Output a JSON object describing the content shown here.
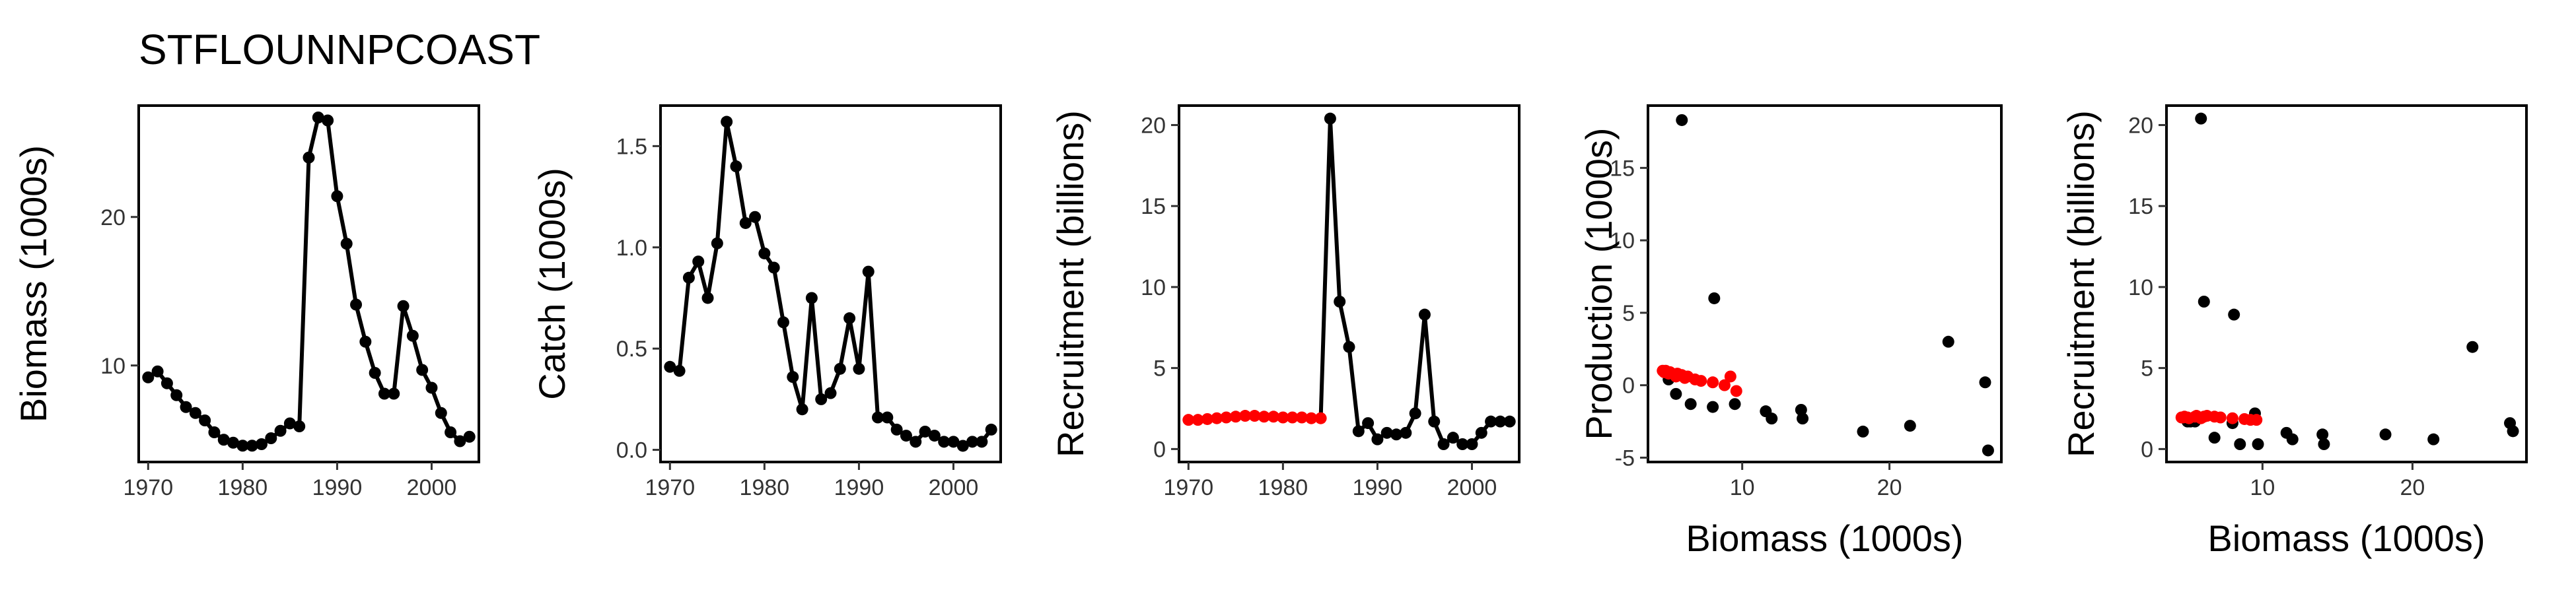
{
  "title": "STFLOUNNPCOAST",
  "chart_data": [
    {
      "id": "biomass_ts",
      "type": "line",
      "xlabel": "",
      "ylabel": "Biomass (1000s)",
      "xlim": [
        1969,
        2005
      ],
      "ylim": [
        3.5,
        27.5
      ],
      "xticks": [
        1970,
        1980,
        1990,
        2000
      ],
      "yticks": [
        10,
        20
      ],
      "series": [
        {
          "color": "#000000",
          "x": [
            1970,
            1971,
            1972,
            1973,
            1974,
            1975,
            1976,
            1977,
            1978,
            1979,
            1980,
            1981,
            1982,
            1983,
            1984,
            1985,
            1986,
            1987,
            1988,
            1989,
            1990,
            1991,
            1992,
            1993,
            1994,
            1995,
            1996,
            1997,
            1998,
            1999,
            2000,
            2001,
            2002,
            2003,
            2004
          ],
          "y": [
            9.2,
            9.6,
            8.8,
            8.0,
            7.2,
            6.8,
            6.3,
            5.5,
            5.0,
            4.8,
            4.6,
            4.6,
            4.7,
            5.1,
            5.6,
            6.1,
            5.9,
            24.0,
            26.7,
            26.5,
            21.4,
            18.2,
            14.1,
            11.6,
            9.5,
            8.1,
            8.1,
            14.0,
            12.0,
            9.7,
            8.5,
            6.8,
            5.5,
            4.9,
            5.2
          ],
          "markers": true
        }
      ]
    },
    {
      "id": "catch_ts",
      "type": "line",
      "xlabel": "",
      "ylabel": "Catch (1000s)",
      "xlim": [
        1969,
        2005
      ],
      "ylim": [
        -0.06,
        1.7
      ],
      "xticks": [
        1970,
        1980,
        1990,
        2000
      ],
      "yticks": [
        0.0,
        0.5,
        1.0,
        1.5
      ],
      "ytick_labels": [
        "0.0",
        "0.5",
        "1.0",
        "1.5"
      ],
      "series": [
        {
          "color": "#000000",
          "x": [
            1970,
            1971,
            1972,
            1973,
            1974,
            1975,
            1976,
            1977,
            1978,
            1979,
            1980,
            1981,
            1982,
            1983,
            1984,
            1985,
            1986,
            1987,
            1988,
            1989,
            1990,
            1991,
            1992,
            1993,
            1994,
            1995,
            1996,
            1997,
            1998,
            1999,
            2000,
            2001,
            2002,
            2003,
            2004
          ],
          "y": [
            0.41,
            0.39,
            0.85,
            0.93,
            0.75,
            1.02,
            1.62,
            1.4,
            1.12,
            1.15,
            0.97,
            0.9,
            0.63,
            0.36,
            0.2,
            0.75,
            0.25,
            0.28,
            0.4,
            0.65,
            0.4,
            0.88,
            0.16,
            0.16,
            0.1,
            0.07,
            0.04,
            0.09,
            0.07,
            0.04,
            0.04,
            0.02,
            0.04,
            0.04,
            0.1
          ],
          "markers": true
        }
      ]
    },
    {
      "id": "recruitment_ts",
      "type": "line",
      "xlabel": "",
      "ylabel": "Recruitment (billions)",
      "xlim": [
        1969,
        2005
      ],
      "ylim": [
        -0.8,
        21.2
      ],
      "xticks": [
        1970,
        1980,
        1990,
        2000
      ],
      "yticks": [
        0,
        5,
        10,
        15,
        20
      ],
      "series": [
        {
          "color": "#000000",
          "x": [
            1970,
            1971,
            1972,
            1973,
            1974,
            1975,
            1976,
            1977,
            1978,
            1979,
            1980,
            1981,
            1982,
            1983,
            1984,
            1985,
            1986,
            1987,
            1988,
            1989,
            1990,
            1991,
            1992,
            1993,
            1994,
            1995,
            1996,
            1997,
            1998,
            1999,
            2000,
            2001,
            2002,
            2003,
            2004
          ],
          "y": [
            1.8,
            1.8,
            1.85,
            1.9,
            1.95,
            2.0,
            2.05,
            2.05,
            2.0,
            2.0,
            1.95,
            1.95,
            1.95,
            1.9,
            1.9,
            20.4,
            9.1,
            6.3,
            1.1,
            1.6,
            0.6,
            1.0,
            0.9,
            1.0,
            2.2,
            8.3,
            1.7,
            0.3,
            0.7,
            0.3,
            0.3,
            1.0,
            1.7,
            1.7,
            1.7
          ],
          "markers": true,
          "highlight_first": 15,
          "highlight_color": "#ff0000"
        }
      ]
    },
    {
      "id": "production_vs_biomass",
      "type": "scatter",
      "xlabel": "Biomass (1000s)",
      "ylabel": "Production (1000s)",
      "xlim": [
        3.6,
        27.6
      ],
      "ylim": [
        -5.3,
        19.3
      ],
      "xticks": [
        10,
        20
      ],
      "yticks": [
        -5,
        0,
        5,
        10,
        15
      ],
      "series": [
        {
          "color": "#000000",
          "x": [
            5.0,
            5.5,
            5.9,
            6.5,
            8.0,
            8.1,
            9.5,
            11.6,
            12.0,
            14.0,
            14.1,
            18.2,
            21.4,
            24.0,
            26.5,
            26.7
          ],
          "y": [
            0.4,
            -0.6,
            18.3,
            -1.3,
            -1.5,
            6.0,
            -1.3,
            -1.8,
            -2.3,
            -1.7,
            -2.3,
            -3.2,
            -2.8,
            3.0,
            0.2,
            -4.5
          ]
        },
        {
          "color": "#ff0000",
          "x": [
            4.6,
            4.7,
            4.8,
            5.0,
            5.1,
            5.5,
            5.6,
            5.9,
            6.1,
            6.3,
            6.8,
            7.2,
            8.0,
            8.8,
            9.2,
            9.6
          ],
          "y": [
            1.0,
            0.9,
            1.0,
            0.8,
            0.9,
            0.6,
            0.8,
            0.7,
            0.5,
            0.6,
            0.4,
            0.3,
            0.2,
            0.0,
            0.6,
            -0.4
          ]
        }
      ]
    },
    {
      "id": "recruitment_vs_biomass",
      "type": "scatter",
      "xlabel": "Biomass (1000s)",
      "ylabel": "Recruitment (billions)",
      "xlim": [
        3.6,
        27.6
      ],
      "ylim": [
        -0.8,
        21.2
      ],
      "xticks": [
        10,
        20
      ],
      "yticks": [
        0,
        5,
        10,
        15,
        20
      ],
      "series": [
        {
          "color": "#000000",
          "x": [
            5.0,
            5.2,
            5.5,
            5.9,
            6.1,
            6.8,
            8.0,
            8.1,
            8.5,
            9.5,
            9.7,
            11.6,
            12.0,
            14.0,
            14.1,
            18.2,
            21.4,
            24.0,
            26.5,
            26.7
          ],
          "y": [
            1.7,
            1.7,
            1.7,
            20.4,
            9.1,
            0.7,
            1.6,
            8.3,
            0.3,
            2.2,
            0.3,
            1.0,
            0.6,
            0.9,
            0.3,
            0.9,
            0.6,
            6.3,
            1.6,
            1.1
          ]
        },
        {
          "color": "#ff0000",
          "x": [
            4.6,
            4.7,
            4.8,
            5.0,
            5.1,
            5.5,
            5.6,
            5.9,
            6.1,
            6.3,
            6.8,
            7.2,
            8.0,
            8.8,
            9.2,
            9.6
          ],
          "y": [
            1.95,
            1.95,
            2.0,
            1.95,
            1.9,
            2.0,
            2.05,
            1.9,
            2.0,
            2.05,
            2.0,
            1.95,
            1.9,
            1.85,
            1.8,
            1.8
          ]
        }
      ]
    }
  ]
}
